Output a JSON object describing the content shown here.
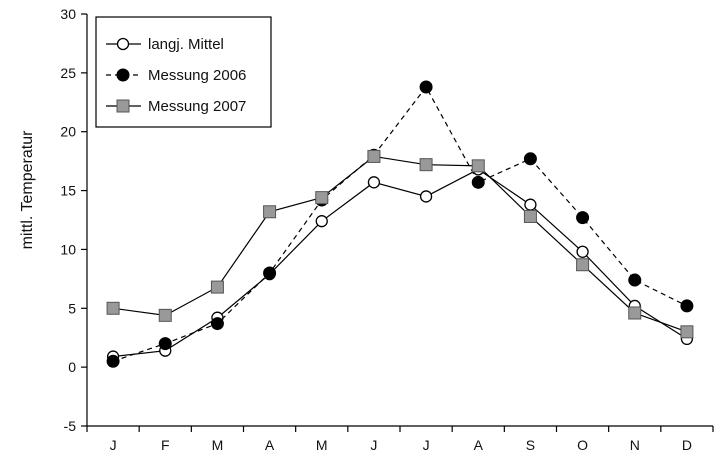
{
  "chart_data": {
    "type": "line",
    "title": "",
    "xlabel": "",
    "ylabel": "mittl. Temperatur",
    "categories": [
      "J",
      "F",
      "M",
      "A",
      "M",
      "J",
      "J",
      "A",
      "S",
      "O",
      "N",
      "D"
    ],
    "ylim": [
      -5,
      30
    ],
    "yticks": [
      -5,
      0,
      5,
      10,
      15,
      20,
      25,
      30
    ],
    "grid": false,
    "legend_position": "top-left",
    "series": [
      {
        "name": "langj. Mittel",
        "marker": "circle-open",
        "line_style": "solid",
        "color": "#000000",
        "values": [
          0.9,
          1.4,
          4.2,
          7.9,
          12.4,
          15.7,
          14.5,
          16.8,
          13.8,
          9.8,
          5.2,
          2.4
        ]
      },
      {
        "name": "Messung 2006",
        "marker": "circle-filled",
        "line_style": "dashed",
        "color": "#000000",
        "values": [
          0.5,
          2.0,
          3.7,
          8.0,
          14.2,
          18.0,
          23.8,
          15.7,
          17.7,
          12.7,
          7.4,
          5.2
        ]
      },
      {
        "name": "Messung 2007",
        "marker": "square-gray",
        "line_style": "solid",
        "color": "#999999",
        "values": [
          5.0,
          4.4,
          6.8,
          13.2,
          14.4,
          17.9,
          17.2,
          17.1,
          12.8,
          8.7,
          4.6,
          3.0
        ]
      }
    ]
  }
}
